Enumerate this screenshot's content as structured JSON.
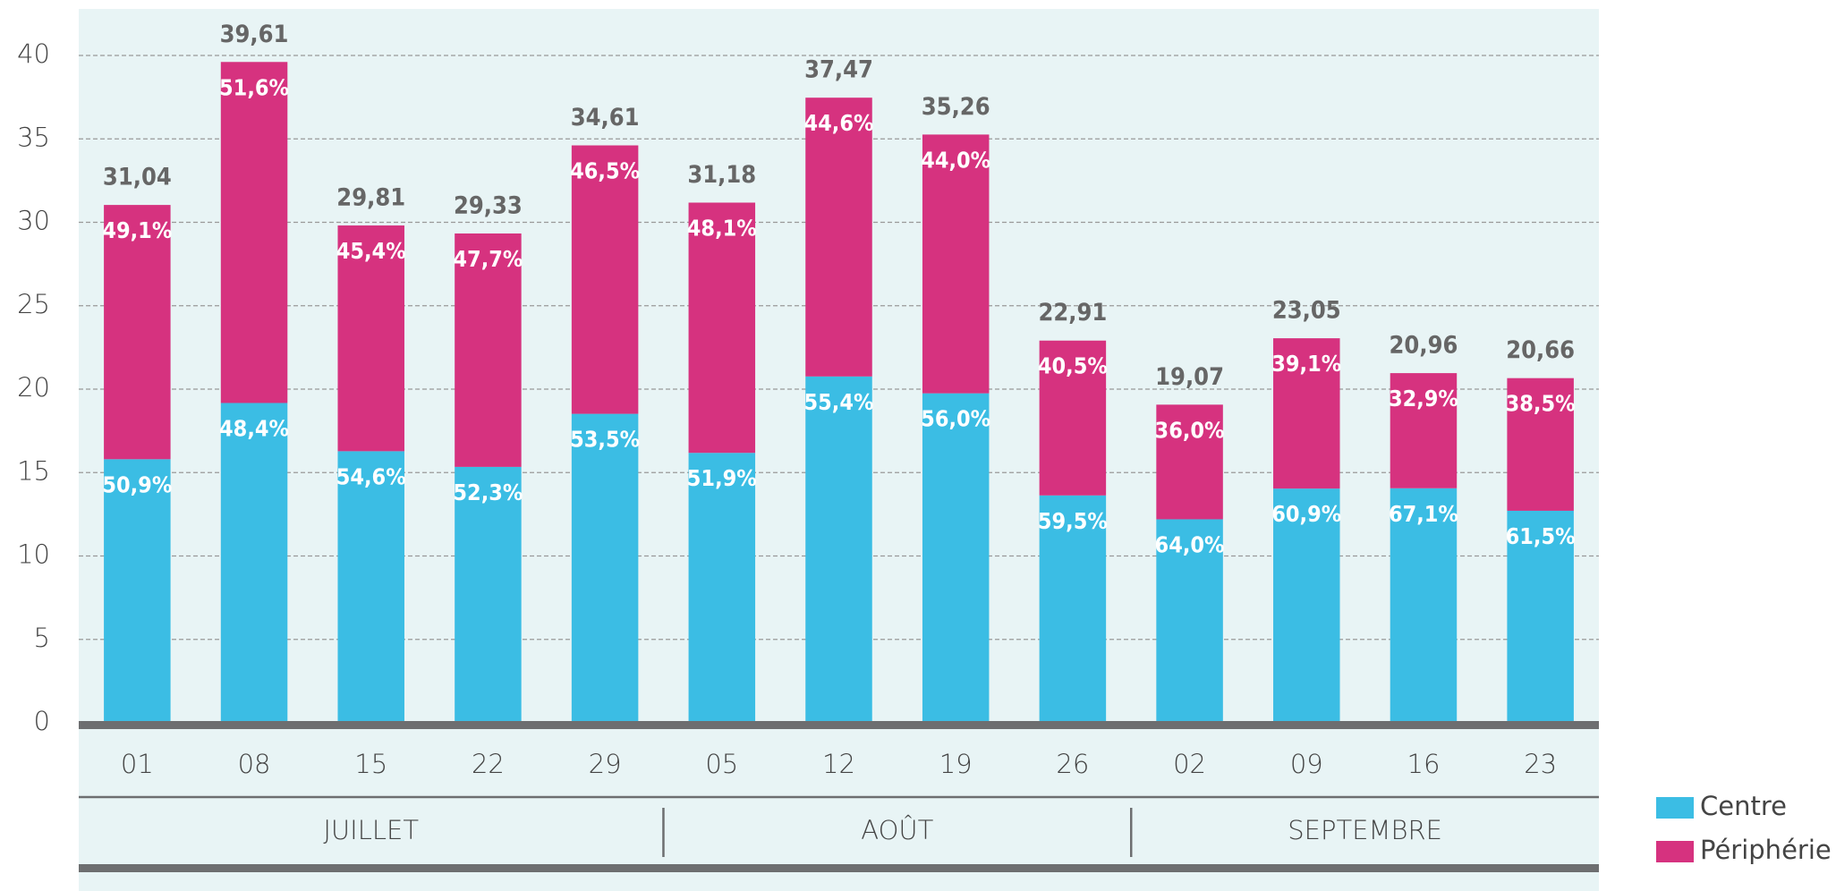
{
  "chart_data": {
    "type": "bar",
    "stacked": true,
    "groups": [
      {
        "label": "JUILLET",
        "categories": [
          "01",
          "08",
          "15",
          "22",
          "29"
        ]
      },
      {
        "label": "AOÛT",
        "categories": [
          "05",
          "12",
          "19",
          "26"
        ]
      },
      {
        "label": "SEPTEMBRE",
        "categories": [
          "02",
          "09",
          "16",
          "23"
        ]
      }
    ],
    "series": [
      {
        "name": "Centre",
        "color": "#3bbde4",
        "values": [
          15.8,
          19.17,
          16.28,
          15.34,
          18.52,
          16.18,
          20.76,
          19.75,
          13.63,
          12.2,
          14.04,
          14.06,
          12.71
        ],
        "shares": [
          50.9,
          48.4,
          54.6,
          52.3,
          53.5,
          51.9,
          55.4,
          56.0,
          59.5,
          64.0,
          60.9,
          67.1,
          61.5
        ],
        "share_labels": [
          "50,9%",
          "48,4%",
          "54,6%",
          "52,3%",
          "53,5%",
          "51,9%",
          "55,4%",
          "56,0%",
          "59,5%",
          "64,0%",
          "60,9%",
          "67,1%",
          "61,5%"
        ]
      },
      {
        "name": "Périphérie",
        "color": "#d6327f",
        "values": [
          15.24,
          20.44,
          13.53,
          13.99,
          16.09,
          15.0,
          16.71,
          15.51,
          9.28,
          6.87,
          9.01,
          6.9,
          7.95
        ],
        "shares": [
          49.1,
          51.6,
          45.4,
          47.7,
          46.5,
          48.1,
          44.6,
          44.0,
          40.5,
          36.0,
          39.1,
          32.9,
          38.5
        ],
        "share_labels": [
          "49,1%",
          "51,6%",
          "45,4%",
          "47,7%",
          "46,5%",
          "48,1%",
          "44,6%",
          "44,0%",
          "40,5%",
          "36,0%",
          "39,1%",
          "32,9%",
          "38,5%"
        ]
      }
    ],
    "totals": [
      31.04,
      39.61,
      29.81,
      29.33,
      34.61,
      31.18,
      37.47,
      35.26,
      22.91,
      19.07,
      23.05,
      20.96,
      20.66
    ],
    "total_labels": [
      "31,04",
      "39,61",
      "29,81",
      "29,33",
      "34,61",
      "31,18",
      "37,47",
      "35,26",
      "22,91",
      "19,07",
      "23,05",
      "20,96",
      "20,66"
    ],
    "ylim": [
      0,
      40
    ],
    "yticks": [
      0,
      5,
      10,
      15,
      20,
      25,
      30,
      35,
      40
    ],
    "grid": true,
    "legend": "right"
  }
}
